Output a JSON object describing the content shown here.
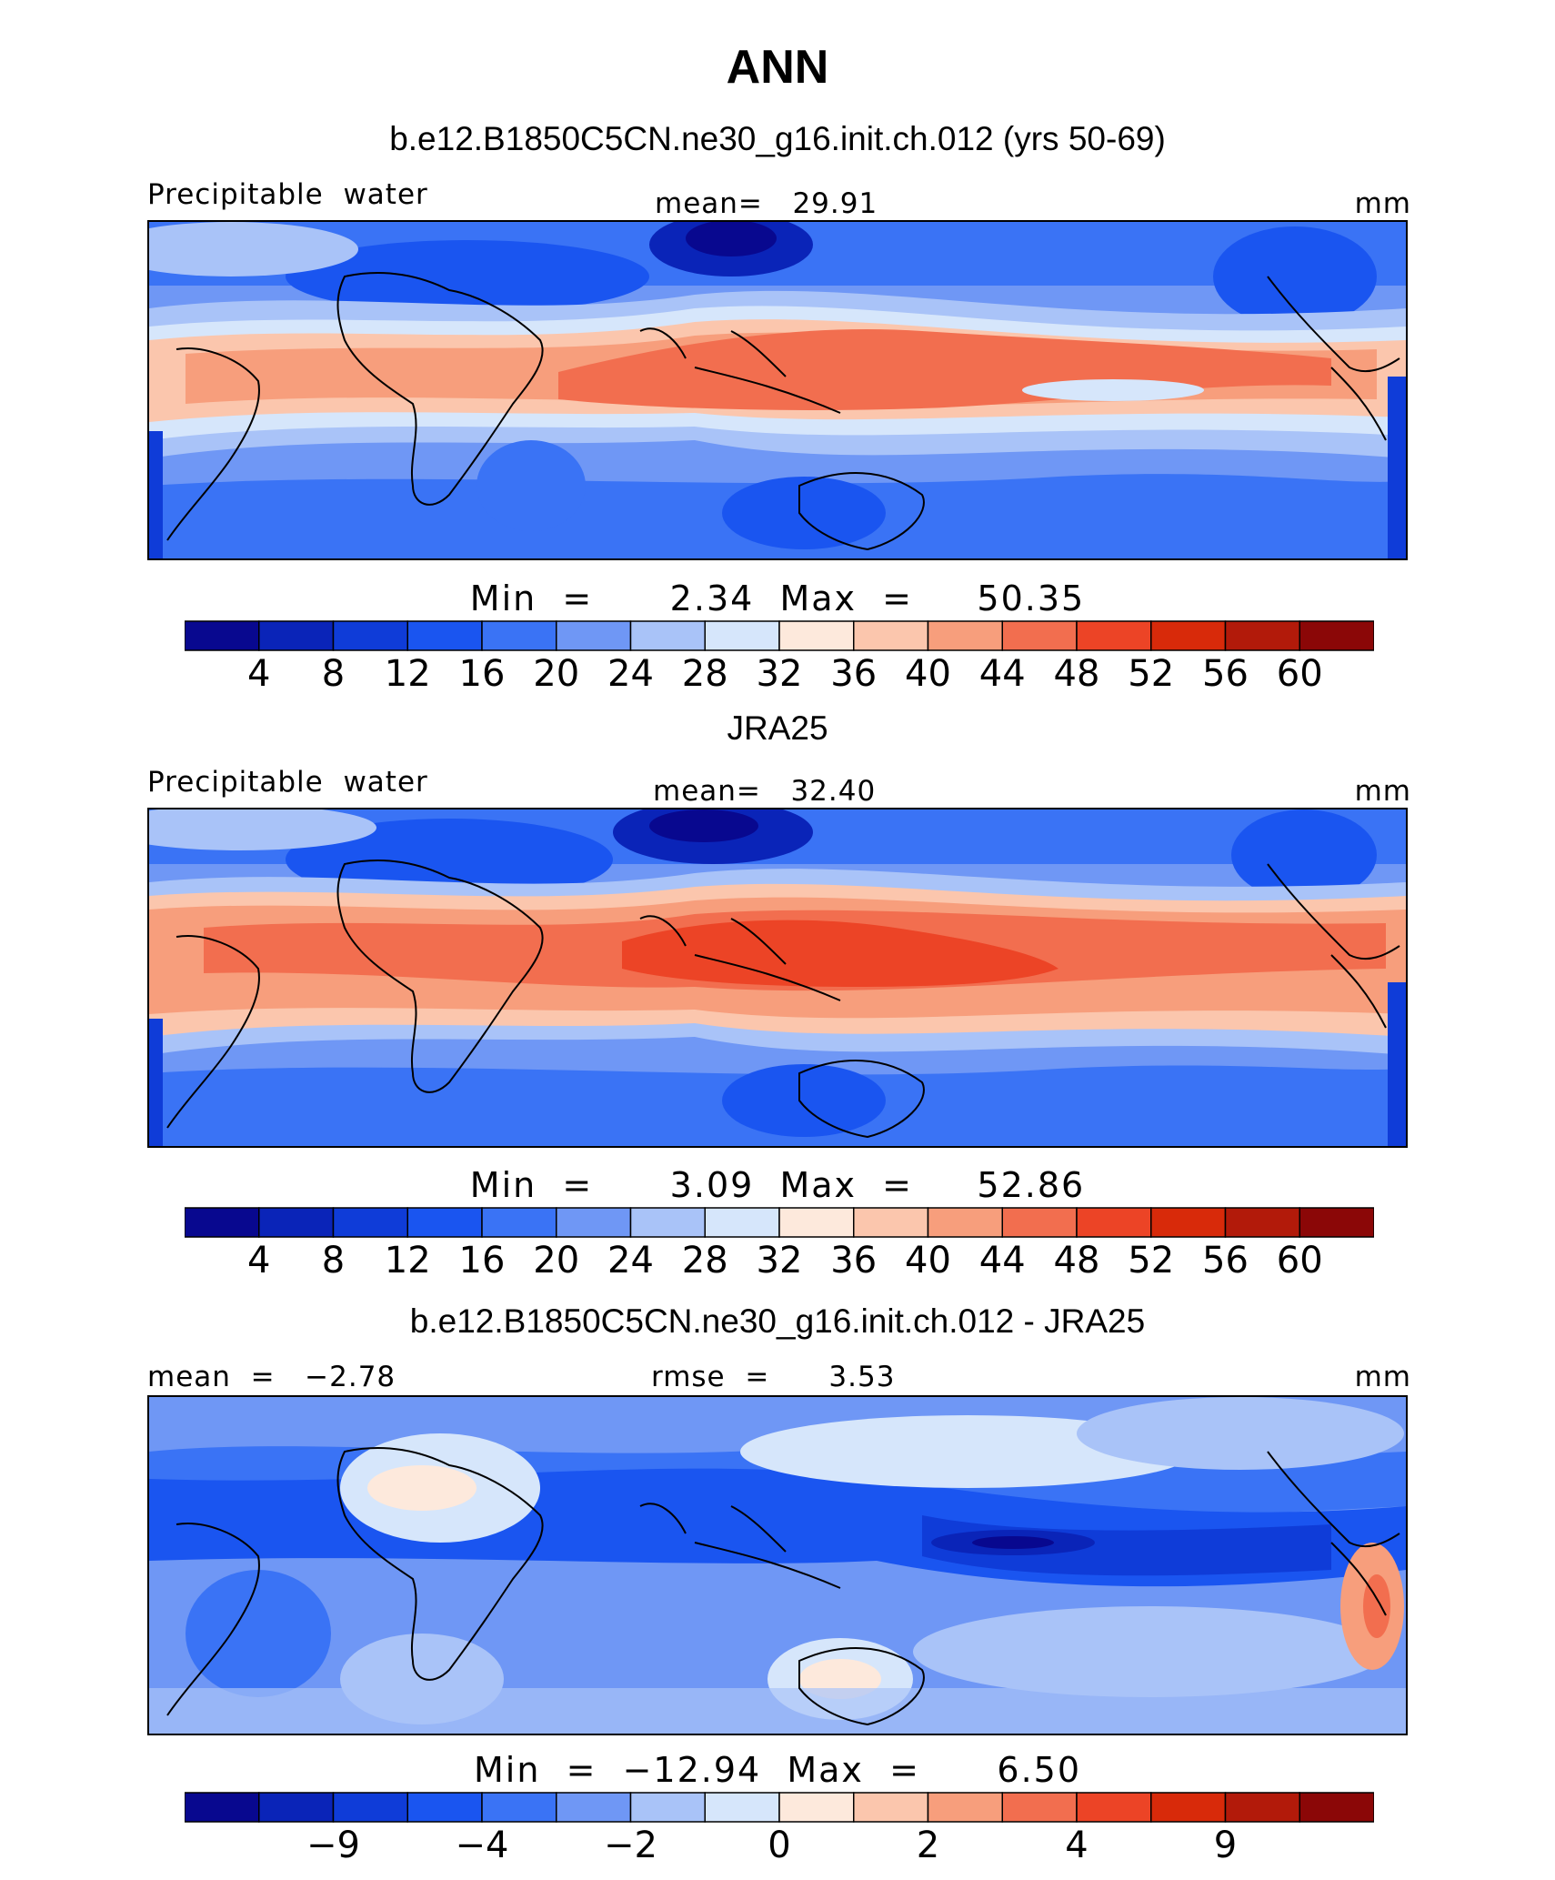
{
  "figure": {
    "title": "ANN"
  },
  "colors": {
    "scale": [
      "#08088f",
      "#0a24b8",
      "#0f3cd8",
      "#1a55f0",
      "#3a73f5",
      "#6f97f5",
      "#a9c3f8",
      "#d6e6fb",
      "#fde9dc",
      "#fbc6ad",
      "#f79e7c",
      "#f26e4f",
      "#ec4426",
      "#d82a0a",
      "#b21a0a",
      "#8b0707"
    ]
  },
  "panels": [
    {
      "title": "b.e12.B1850C5CN.ne30_g16.init.ch.012 (yrs 50-69)",
      "left_label": "Precipitable  water",
      "center_label": "mean=   29.91",
      "right_label": "mm",
      "minmax": "Min  =      2.34  Max  =     50.35",
      "colorbar_ticks": [
        "4",
        "8",
        "12",
        "16",
        "20",
        "24",
        "28",
        "32",
        "36",
        "40",
        "44",
        "48",
        "52",
        "56",
        "60"
      ]
    },
    {
      "title": "JRA25",
      "left_label": "Precipitable  water",
      "center_label": "mean=   32.40",
      "right_label": "mm",
      "minmax": "Min  =      3.09  Max  =     52.86",
      "colorbar_ticks": [
        "4",
        "8",
        "12",
        "16",
        "20",
        "24",
        "28",
        "32",
        "36",
        "40",
        "44",
        "48",
        "52",
        "56",
        "60"
      ]
    },
    {
      "title": "b.e12.B1850C5CN.ne30_g16.init.ch.012 - JRA25",
      "left_label": "mean  =   −2.78",
      "center_label": "rmse  =      3.53",
      "right_label": "mm",
      "minmax": "Min  =  −12.94  Max  =      6.50",
      "colorbar_ticks": [
        "−9",
        "−4",
        "−2",
        "0",
        "2",
        "4",
        "9"
      ]
    }
  ]
}
